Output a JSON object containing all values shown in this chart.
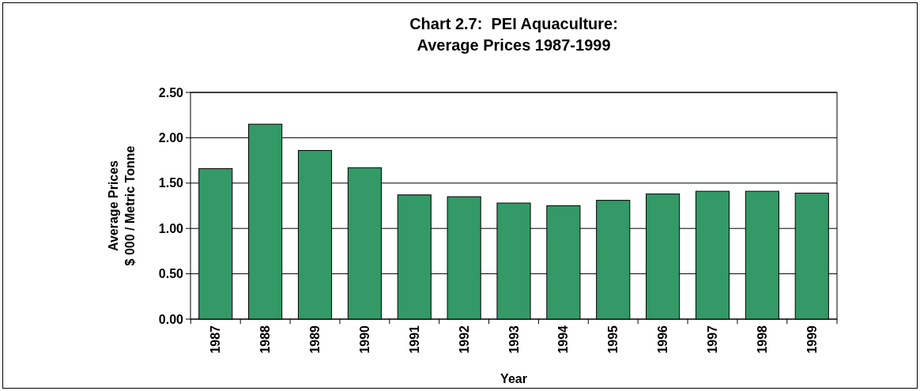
{
  "chart_data": {
    "type": "bar",
    "title": "Chart 2.7:  PEI Aquaculture:\nAverage Prices 1987-1999",
    "xlabel": "Year",
    "ylabel": "Average Prices\n$ 000 / Metric Tonne",
    "categories": [
      "1987",
      "1988",
      "1989",
      "1990",
      "1991",
      "1992",
      "1993",
      "1994",
      "1995",
      "1996",
      "1997",
      "1998",
      "1999"
    ],
    "values": [
      1.66,
      2.15,
      1.86,
      1.67,
      1.37,
      1.35,
      1.28,
      1.25,
      1.31,
      1.38,
      1.41,
      1.41,
      1.39
    ],
    "color": "#339966",
    "ylim": [
      0,
      2.5
    ],
    "yticks": [
      {
        "value": 0,
        "label": "0.00"
      },
      {
        "value": 0.5,
        "label": "0.50"
      },
      {
        "value": 1,
        "label": "1.00"
      },
      {
        "value": 1.5,
        "label": "1.50"
      },
      {
        "value": 2,
        "label": "2.00"
      },
      {
        "value": 2.5,
        "label": "2.50"
      }
    ],
    "grid": "y"
  }
}
